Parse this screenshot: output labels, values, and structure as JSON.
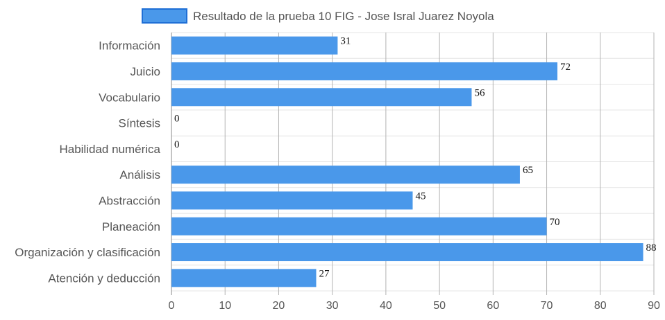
{
  "chart_data": {
    "type": "bar",
    "orientation": "horizontal",
    "categories": [
      "Información",
      "Juicio",
      "Vocabulario",
      "Síntesis",
      "Habilidad numérica",
      "Análisis",
      "Abstracción",
      "Planeación",
      "Organización y clasificación",
      "Atención y deducción"
    ],
    "series": [
      {
        "name": "Resultado de la prueba 10 FIG - Jose Isral Juarez Noyola",
        "values": [
          31,
          72,
          56,
          0,
          0,
          65,
          45,
          70,
          88,
          27
        ],
        "color": "#4a98ea"
      }
    ],
    "xlim": [
      0,
      90
    ],
    "xticks": [
      "0",
      "10",
      "20",
      "30",
      "40",
      "50",
      "60",
      "70",
      "80",
      "90"
    ],
    "grid": true,
    "legend": "top"
  }
}
